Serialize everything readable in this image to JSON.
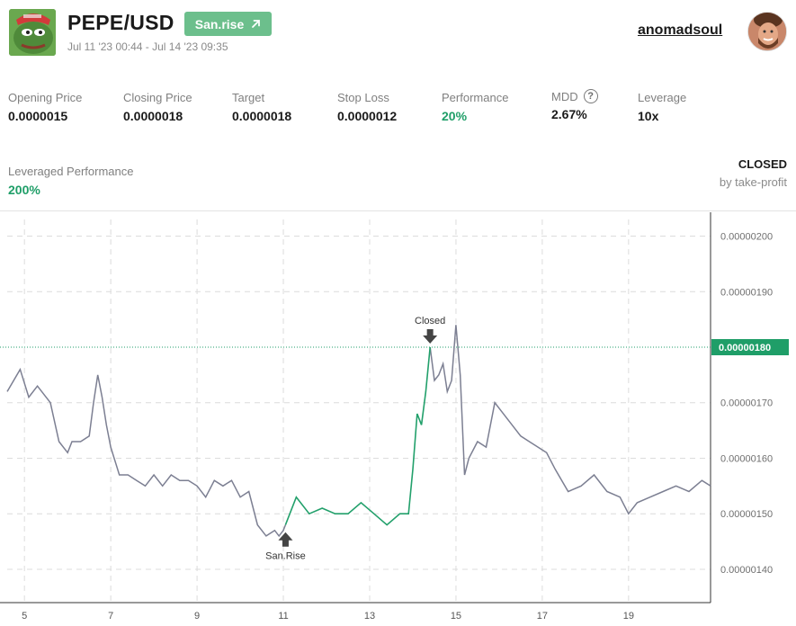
{
  "header": {
    "title": "PEPE/USD",
    "badge_label": "San.rise",
    "date_range": "Jul 11 '23 00:44 - Jul 14 '23 09:35",
    "username": "anomadsoul"
  },
  "stats": [
    {
      "label": "Opening Price",
      "value": "0.0000015",
      "color": ""
    },
    {
      "label": "Closing Price",
      "value": "0.0000018",
      "color": ""
    },
    {
      "label": "Target",
      "value": "0.0000018",
      "color": ""
    },
    {
      "label": "Stop Loss",
      "value": "0.0000012",
      "color": ""
    },
    {
      "label": "Performance",
      "value": "20%",
      "color": "green"
    },
    {
      "label": "MDD",
      "value": "2.67%",
      "color": "",
      "help": "?"
    },
    {
      "label": "Leverage",
      "value": "10x",
      "color": ""
    }
  ],
  "leveraged": {
    "label": "Leveraged Performance",
    "value": "200%"
  },
  "status": {
    "state": "CLOSED",
    "reason": "by take-profit"
  },
  "colors": {
    "accent_green": "#1f9e68",
    "badge_green": "#6cbf8c",
    "price_line": "#7c7f92",
    "trade_line": "#22a06b"
  },
  "chart_data": {
    "type": "line",
    "x_ticks": [
      "5",
      "7",
      "9",
      "11",
      "13",
      "15",
      "17",
      "19"
    ],
    "y_ticks": [
      "0.00000200",
      "0.00000190",
      "0.00000170",
      "0.00000160",
      "0.00000150",
      "0.00000140"
    ],
    "ylim": [
      1.34e-06,
      2.03e-06
    ],
    "xlim": [
      4.6,
      20.9
    ],
    "grid": true,
    "current_price_label": "0.00000180",
    "current_price": 1.8e-06,
    "markers": [
      {
        "label": "San.Rise",
        "x": 11.05,
        "y": 1.47e-06,
        "direction": "up"
      },
      {
        "label": "Closed",
        "x": 14.4,
        "y": 1.8e-06,
        "direction": "down"
      }
    ],
    "trade_window": [
      11.05,
      14.4
    ],
    "series": [
      {
        "x": [
          4.6,
          4.9,
          5.1,
          5.3,
          5.6,
          5.8,
          6.0,
          6.1,
          6.3,
          6.5,
          6.6,
          6.7,
          6.8,
          6.9,
          7.0,
          7.2,
          7.4,
          7.6,
          7.8,
          8.0,
          8.2,
          8.4,
          8.6,
          8.8,
          9.0,
          9.2,
          9.4,
          9.6,
          9.8,
          10.0,
          10.2,
          10.4,
          10.6,
          10.8,
          10.9,
          11.0,
          11.05,
          11.3,
          11.6,
          11.9,
          12.2,
          12.5,
          12.8,
          13.1,
          13.4,
          13.7,
          13.9,
          14.0,
          14.1,
          14.2,
          14.3,
          14.4,
          14.5,
          14.6,
          14.7,
          14.8,
          14.9,
          15.0,
          15.1,
          15.2,
          15.3,
          15.5,
          15.7,
          15.9,
          16.1,
          16.3,
          16.5,
          16.7,
          16.9,
          17.1,
          17.3,
          17.6,
          17.9,
          18.2,
          18.5,
          18.8,
          19.0,
          19.2,
          19.5,
          19.8,
          20.1,
          20.4,
          20.7,
          20.9
        ],
        "y": [
          1.72e-06,
          1.76e-06,
          1.71e-06,
          1.73e-06,
          1.7e-06,
          1.63e-06,
          1.61e-06,
          1.63e-06,
          1.63e-06,
          1.64e-06,
          1.7e-06,
          1.75e-06,
          1.71e-06,
          1.66e-06,
          1.62e-06,
          1.57e-06,
          1.57e-06,
          1.56e-06,
          1.55e-06,
          1.57e-06,
          1.55e-06,
          1.57e-06,
          1.56e-06,
          1.56e-06,
          1.55e-06,
          1.53e-06,
          1.56e-06,
          1.55e-06,
          1.56e-06,
          1.53e-06,
          1.54e-06,
          1.48e-06,
          1.46e-06,
          1.47e-06,
          1.46e-06,
          1.47e-06,
          1.48e-06,
          1.53e-06,
          1.5e-06,
          1.51e-06,
          1.5e-06,
          1.5e-06,
          1.52e-06,
          1.5e-06,
          1.48e-06,
          1.5e-06,
          1.5e-06,
          1.58e-06,
          1.68e-06,
          1.66e-06,
          1.72e-06,
          1.8e-06,
          1.74e-06,
          1.75e-06,
          1.77e-06,
          1.72e-06,
          1.74e-06,
          1.84e-06,
          1.75e-06,
          1.57e-06,
          1.6e-06,
          1.63e-06,
          1.62e-06,
          1.7e-06,
          1.68e-06,
          1.66e-06,
          1.64e-06,
          1.63e-06,
          1.62e-06,
          1.61e-06,
          1.58e-06,
          1.54e-06,
          1.55e-06,
          1.57e-06,
          1.54e-06,
          1.53e-06,
          1.5e-06,
          1.52e-06,
          1.53e-06,
          1.54e-06,
          1.55e-06,
          1.54e-06,
          1.56e-06,
          1.55e-06
        ]
      }
    ]
  }
}
